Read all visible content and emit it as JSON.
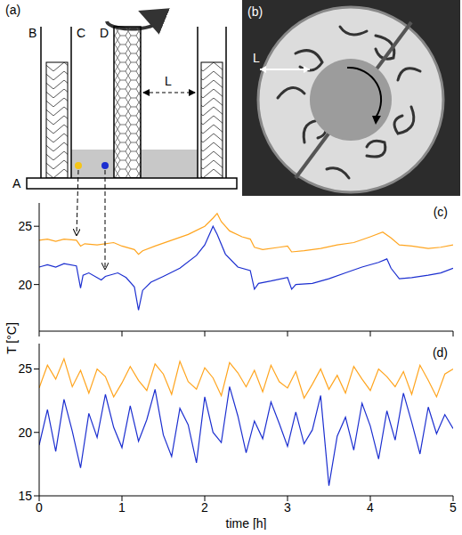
{
  "panels": {
    "a": {
      "label": "(a)",
      "parts": [
        "A",
        "B",
        "C",
        "D"
      ],
      "gap": "L"
    },
    "b": {
      "label": "(b)",
      "gap": "L"
    }
  },
  "chart_data": [
    {
      "type": "line",
      "title": "(c)",
      "ylabel": "T [°C]",
      "xlim": [
        0,
        5
      ],
      "xticks": [
        0,
        1,
        2,
        3,
        4,
        5
      ],
      "ylim": [
        16,
        27
      ],
      "yticks": [
        20,
        25
      ],
      "tick_labels": "y",
      "series": [
        {
          "color": "#ffa51f",
          "x": [
            0,
            0.1,
            0.2,
            0.3,
            0.45,
            0.5,
            0.55,
            0.7,
            0.9,
            1.0,
            1.15,
            1.2,
            1.25,
            1.4,
            1.6,
            1.8,
            2.0,
            2.1,
            2.15,
            2.2,
            2.3,
            2.45,
            2.55,
            2.6,
            2.7,
            2.9,
            3.0,
            3.05,
            3.2,
            3.4,
            3.6,
            3.8,
            4.0,
            4.15,
            4.25,
            4.35,
            4.5,
            4.7,
            4.85,
            5.0
          ],
          "values": [
            23.8,
            23.9,
            23.7,
            23.9,
            23.8,
            23.3,
            23.5,
            23.4,
            23.6,
            23.3,
            23.0,
            22.6,
            22.9,
            23.3,
            23.8,
            24.3,
            25.0,
            25.7,
            26.1,
            25.4,
            24.6,
            24.1,
            23.9,
            23.2,
            23.0,
            23.2,
            23.3,
            22.8,
            22.9,
            23.1,
            23.4,
            23.6,
            24.1,
            24.5,
            24.0,
            23.4,
            23.3,
            23.1,
            23.2,
            23.4
          ]
        },
        {
          "color": "#1c2fd0",
          "x": [
            0,
            0.1,
            0.2,
            0.3,
            0.45,
            0.5,
            0.53,
            0.6,
            0.75,
            0.8,
            0.95,
            1.05,
            1.15,
            1.2,
            1.25,
            1.35,
            1.5,
            1.7,
            1.9,
            2.0,
            2.1,
            2.15,
            2.25,
            2.4,
            2.55,
            2.6,
            2.65,
            2.8,
            3.0,
            3.05,
            3.1,
            3.3,
            3.5,
            3.7,
            3.9,
            4.1,
            4.2,
            4.25,
            4.35,
            4.5,
            4.7,
            4.85,
            5.0
          ],
          "values": [
            21.5,
            21.7,
            21.5,
            21.8,
            21.6,
            19.7,
            20.8,
            21.0,
            20.4,
            20.7,
            21.0,
            20.6,
            19.8,
            17.8,
            19.5,
            20.2,
            20.7,
            21.4,
            22.5,
            23.4,
            25.0,
            24.3,
            22.6,
            21.5,
            21.2,
            19.6,
            20.1,
            20.3,
            20.6,
            19.6,
            20.0,
            20.1,
            20.5,
            21.0,
            21.5,
            21.9,
            22.2,
            21.4,
            20.5,
            20.6,
            20.8,
            21.0,
            21.4
          ]
        }
      ]
    },
    {
      "type": "line",
      "title": "(d)",
      "xlabel": "time [h]",
      "xlim": [
        0,
        5
      ],
      "xticks": [
        0,
        1,
        2,
        3,
        4,
        5
      ],
      "ylim": [
        15,
        27
      ],
      "yticks": [
        15,
        20,
        25
      ],
      "x": [
        0,
        0.1,
        0.2,
        0.3,
        0.4,
        0.5,
        0.6,
        0.7,
        0.8,
        0.9,
        1.0,
        1.1,
        1.2,
        1.3,
        1.4,
        1.5,
        1.6,
        1.7,
        1.8,
        1.9,
        2.0,
        2.1,
        2.2,
        2.3,
        2.4,
        2.5,
        2.6,
        2.7,
        2.8,
        2.9,
        3.0,
        3.1,
        3.2,
        3.3,
        3.4,
        3.5,
        3.6,
        3.7,
        3.8,
        3.9,
        4.0,
        4.1,
        4.2,
        4.3,
        4.4,
        4.5,
        4.6,
        4.7,
        4.8,
        4.9,
        5.0
      ],
      "series": [
        {
          "color": "#ffa51f",
          "values": [
            23.5,
            25.3,
            24.2,
            25.8,
            23.6,
            24.9,
            23.1,
            25.0,
            24.4,
            22.8,
            23.9,
            25.2,
            24.1,
            23.3,
            25.4,
            24.6,
            23.0,
            25.6,
            24.0,
            23.4,
            25.1,
            24.3,
            22.9,
            25.5,
            24.7,
            23.6,
            24.9,
            23.2,
            25.3,
            24.0,
            23.5,
            24.8,
            22.7,
            23.8,
            25.0,
            23.4,
            24.5,
            23.1,
            25.2,
            24.2,
            23.3,
            25.0,
            24.4,
            23.6,
            24.8,
            23.0,
            25.3,
            24.1,
            22.8,
            24.6,
            25.0
          ]
        },
        {
          "color": "#1c2fd0",
          "values": [
            19.0,
            21.8,
            18.5,
            22.6,
            20.1,
            17.2,
            21.5,
            19.6,
            23.0,
            20.4,
            18.8,
            22.1,
            19.3,
            21.0,
            23.4,
            19.8,
            18.1,
            21.9,
            20.6,
            17.6,
            22.8,
            20.0,
            19.2,
            23.6,
            21.3,
            18.4,
            20.9,
            19.5,
            22.4,
            20.7,
            18.9,
            21.6,
            19.1,
            20.2,
            22.9,
            15.8,
            19.7,
            21.2,
            18.6,
            22.3,
            20.5,
            17.9,
            21.7,
            19.4,
            23.1,
            20.8,
            18.3,
            22.0,
            19.9,
            21.4,
            20.3
          ]
        }
      ]
    }
  ]
}
